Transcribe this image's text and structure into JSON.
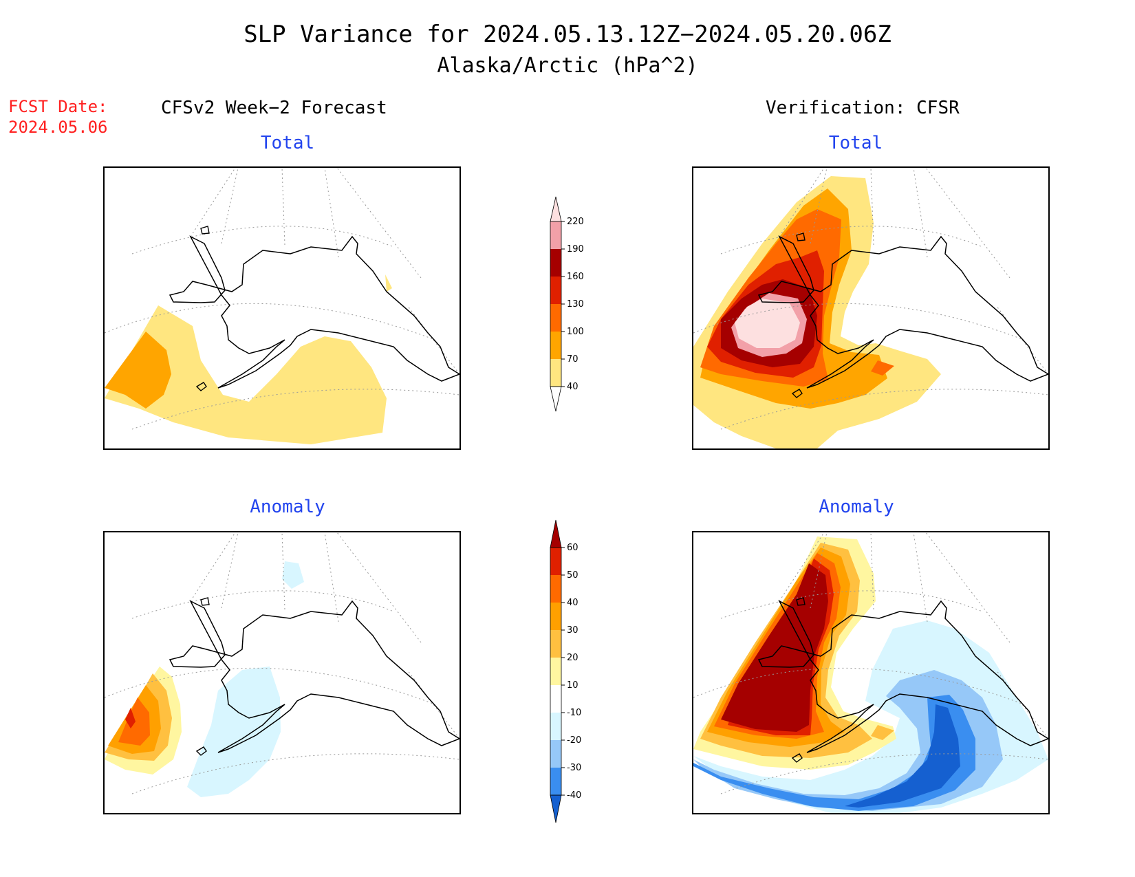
{
  "title": "SLP Variance for 2024.05.13.12Z−2024.05.20.06Z",
  "subtitle": "Alaska/Arctic (hPa^2)",
  "fcst_label": "FCST Date:",
  "fcst_date": "2024.05.06",
  "left_column_title": "CFSv2 Week−2 Forecast",
  "right_column_title": "Verification: CFSR",
  "panels": {
    "forecast_total": "Total",
    "verification_total": "Total",
    "forecast_anomaly": "Anomaly",
    "verification_anomaly": "Anomaly"
  },
  "total_scale": {
    "levels": [
      "40",
      "70",
      "100",
      "130",
      "160",
      "190",
      "220"
    ],
    "colors": [
      "#ffe680",
      "#ffa500",
      "#ff6a00",
      "#e02000",
      "#a50000",
      "#f2a0a8",
      "#fde0e0"
    ]
  },
  "anomaly_scale": {
    "levels": [
      "-40",
      "-30",
      "-20",
      "-10",
      "10",
      "20",
      "30",
      "40",
      "50",
      "60"
    ],
    "colors": [
      "#1560d0",
      "#3a8ef0",
      "#96c8f8",
      "#d8f6ff",
      "#ffffff",
      "#fff6a0",
      "#ffc040",
      "#ffa000",
      "#ff6a00",
      "#e02000",
      "#a50000"
    ]
  }
}
